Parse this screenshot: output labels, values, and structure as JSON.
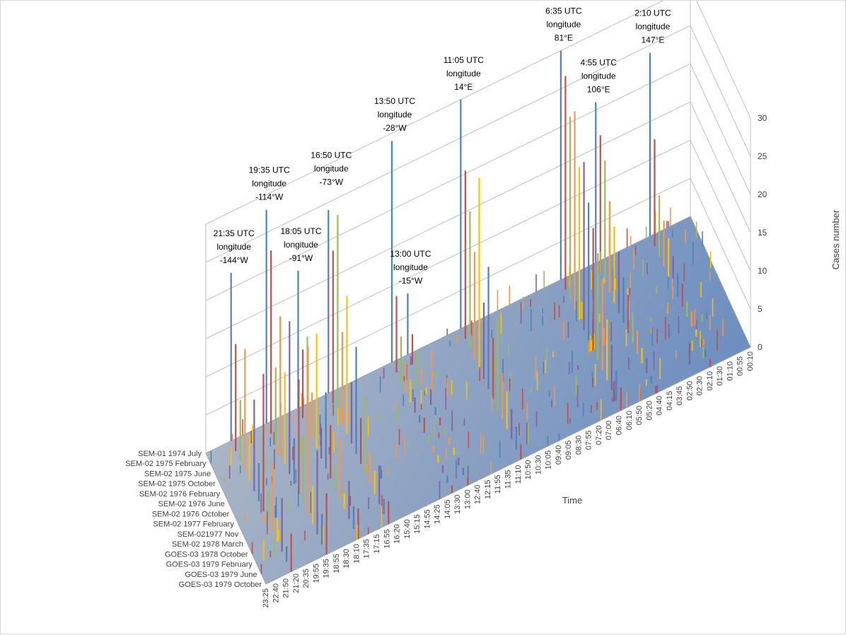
{
  "chart_data": {
    "type": "bar",
    "subtype": "3d-column",
    "title": "",
    "xlabel": "Time",
    "zlabel": "Cases number",
    "zlim": [
      0,
      30
    ],
    "z_ticks": [
      "0",
      "5",
      "10",
      "15",
      "20",
      "25",
      "30"
    ],
    "grid": true,
    "legend": "none",
    "colors": {
      "series": [
        "#4f81bd",
        "#c0504d",
        "#9bbb59",
        "#f79646",
        "#ffc000",
        "#8064a2"
      ],
      "floor_left": "#b7bfc8",
      "floor_right": "#6f8fbf",
      "gridline": "#bfbfbf"
    },
    "series_labels": [
      "SEM-01 1974 July",
      "SEM-02 1975 February",
      "SEM-02 1975 June",
      "SEM-02 1975 October",
      "SEM-02 1976 February",
      "SEM-02 1976 June",
      "SEM-02 1976 October",
      "SEM-02 1977 February",
      "SEM-021977 Nov",
      "SEM-02 1978 March",
      "GOES-03 1978 October",
      "GOES-03 1979 February",
      "GOES-03 1979 June",
      "GOES-03 1979 October"
    ],
    "time_labels": [
      "23:25",
      "22:40",
      "21:50",
      "21:20",
      "20:35",
      "19:55",
      "19:35",
      "18:55",
      "18:30",
      "18:10",
      "17:35",
      "17:15",
      "16:55",
      "16:20",
      "15:40",
      "15:15",
      "14:55",
      "14:25",
      "14:05",
      "13:30",
      "13:00",
      "12:40",
      "12:15",
      "11:55",
      "11:35",
      "11:10",
      "10:50",
      "10:30",
      "10:05",
      "09:40",
      "09:05",
      "08:30",
      "07:55",
      "07:20",
      "07:00",
      "06:40",
      "06:10",
      "05:50",
      "05:20",
      "04:40",
      "04:15",
      "03:45",
      "02:50",
      "02:30",
      "02:10",
      "01:30",
      "01:10",
      "00:55",
      "00:10"
    ],
    "annotations": [
      {
        "lines": [
          "21:35 UTC",
          "longitude",
          "-144°W"
        ],
        "time": "21:35",
        "peak": 22
      },
      {
        "lines": [
          "19:35 UTC",
          "longitude",
          "-114°W"
        ],
        "time": "19:35",
        "peak": 28
      },
      {
        "lines": [
          "18:05 UTC",
          "longitude",
          "-91°W"
        ],
        "time": "18:05",
        "peak": 18
      },
      {
        "lines": [
          "16:50 UTC",
          "longitude",
          "-73°W"
        ],
        "time": "16:50",
        "peak": 26
      },
      {
        "lines": [
          "13:50 UTC",
          "longitude",
          "-28°W"
        ],
        "time": "13:50",
        "peak": 29
      },
      {
        "lines": [
          "13:00 UTC",
          "longitude",
          "-15°W"
        ],
        "time": "13:00",
        "peak": 8
      },
      {
        "lines": [
          "11:05 UTC",
          "longitude",
          "14°E"
        ],
        "time": "11:05",
        "peak": 30
      },
      {
        "lines": [
          "6:35 UTC",
          "longitude",
          "81°E"
        ],
        "time": "6:35",
        "peak": 30
      },
      {
        "lines": [
          "4:55 UTC",
          "longitude",
          "106°E"
        ],
        "time": "4:55",
        "peak": 21
      },
      {
        "lines": [
          "2:10 UTC",
          "longitude",
          "147°E"
        ],
        "time": "2:10",
        "peak": 24
      }
    ],
    "peaks": [
      {
        "time": "21:35",
        "values": [
          22,
          14,
          8,
          16,
          6,
          12,
          5,
          18,
          4,
          9,
          3,
          7,
          2,
          5
        ]
      },
      {
        "time": "19:35",
        "values": [
          28,
          24,
          10,
          18,
          12,
          20,
          6,
          15,
          9,
          22,
          5,
          11,
          4,
          8
        ]
      },
      {
        "time": "18:05",
        "values": [
          18,
          9,
          12,
          6,
          15,
          4,
          10,
          7,
          3,
          8,
          2,
          5,
          3,
          4
        ]
      },
      {
        "time": "16:50",
        "values": [
          24,
          20,
          26,
          12,
          18,
          8,
          14,
          6,
          10,
          4,
          3,
          5,
          2,
          3
        ]
      },
      {
        "time": "13:50",
        "values": [
          29,
          10,
          6,
          4,
          3,
          2,
          1,
          2,
          1,
          1,
          1,
          1,
          1,
          1
        ]
      },
      {
        "time": "13:00",
        "values": [
          8,
          4,
          3,
          2,
          1,
          2,
          1,
          1,
          1,
          1,
          1,
          1,
          1,
          1
        ]
      },
      {
        "time": "11:05",
        "values": [
          30,
          22,
          18,
          14,
          25,
          10,
          16,
          8,
          12,
          6,
          5,
          4,
          3,
          2
        ]
      },
      {
        "time": "6:35",
        "values": [
          30,
          28,
          24,
          26,
          20,
          22,
          18,
          16,
          14,
          12,
          8,
          6,
          4,
          3
        ]
      },
      {
        "time": "4:55",
        "values": [
          21,
          18,
          16,
          12,
          10,
          8,
          6,
          5,
          4,
          3,
          2,
          2,
          1,
          1
        ]
      },
      {
        "time": "2:10",
        "values": [
          24,
          14,
          8,
          6,
          5,
          4,
          3,
          3,
          2,
          2,
          1,
          1,
          1,
          1
        ]
      }
    ]
  }
}
